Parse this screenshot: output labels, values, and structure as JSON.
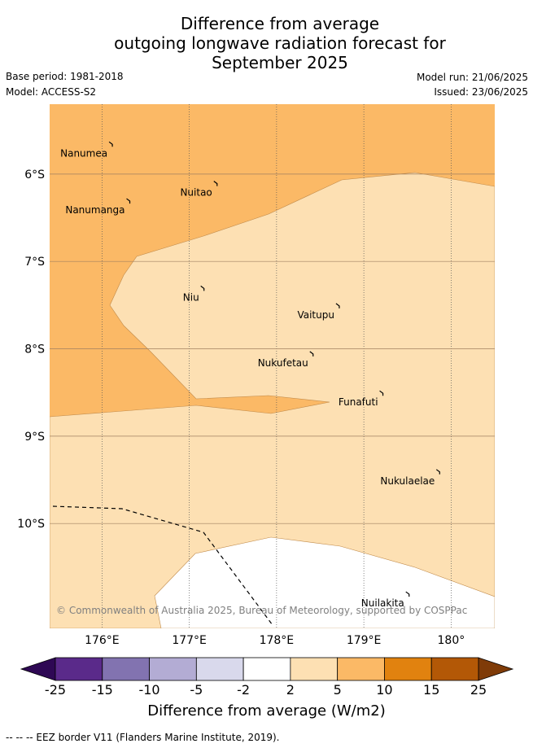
{
  "title": {
    "line1": "Difference from average",
    "line2": "outgoing longwave radiation forecast for",
    "line3": "September 2025"
  },
  "meta": {
    "base_period": "Base period: 1981-2018",
    "model": "Model: ACCESS-S2",
    "model_run": "Model run: 21/06/2025",
    "issued": "Issued: 23/06/2025"
  },
  "map": {
    "lon_range": [
      175.4,
      180.5
    ],
    "lat_range": [
      -5.2,
      -11.2
    ],
    "x_ticks": [
      {
        "value": 176,
        "label": "176°E"
      },
      {
        "value": 177,
        "label": "177°E"
      },
      {
        "value": 178,
        "label": "178°E"
      },
      {
        "value": 179,
        "label": "179°E"
      },
      {
        "value": 180,
        "label": "180°"
      }
    ],
    "y_ticks": [
      {
        "value": -6,
        "label": "6°S"
      },
      {
        "value": -7,
        "label": "7°S"
      },
      {
        "value": -8,
        "label": "8°S"
      },
      {
        "value": -9,
        "label": "9°S"
      },
      {
        "value": -10,
        "label": "10°S"
      }
    ],
    "places": [
      {
        "name": "Nanumea",
        "lon": 176.1,
        "lat": -5.65
      },
      {
        "name": "Nuitao",
        "lon": 177.3,
        "lat": -6.1
      },
      {
        "name": "Nanumanga",
        "lon": 176.3,
        "lat": -6.3
      },
      {
        "name": "Niu",
        "lon": 177.15,
        "lat": -7.3
      },
      {
        "name": "Vaitupu",
        "lon": 178.7,
        "lat": -7.5
      },
      {
        "name": "Nukufetau",
        "lon": 178.4,
        "lat": -8.05
      },
      {
        "name": "Funafuti",
        "lon": 179.2,
        "lat": -8.5
      },
      {
        "name": "Nukulaelae",
        "lon": 179.85,
        "lat": -9.4
      },
      {
        "name": "Nuilakita",
        "lon": 179.5,
        "lat": -10.8
      }
    ],
    "copyright": "© Commonwealth of Australia 2025, Bureau of Meteorology, supported by COSPPac"
  },
  "colorbar": {
    "title": "Difference from average (W/m2)",
    "bounds": [
      "-25",
      "-15",
      "-10",
      "-5",
      "-2",
      "2",
      "5",
      "10",
      "15",
      "25"
    ],
    "colors": [
      "#5a2a8a",
      "#8273b0",
      "#b3acd4",
      "#d9d9ec",
      "#ffffff",
      "#fde0b3",
      "#fbb966",
      "#e1820f",
      "#b35806"
    ],
    "under_color": "#2e0854",
    "over_color": "#7f3b08"
  },
  "footnote": "-- -- -- EEZ border V11 (Flanders Marine Institute, 2019)."
}
